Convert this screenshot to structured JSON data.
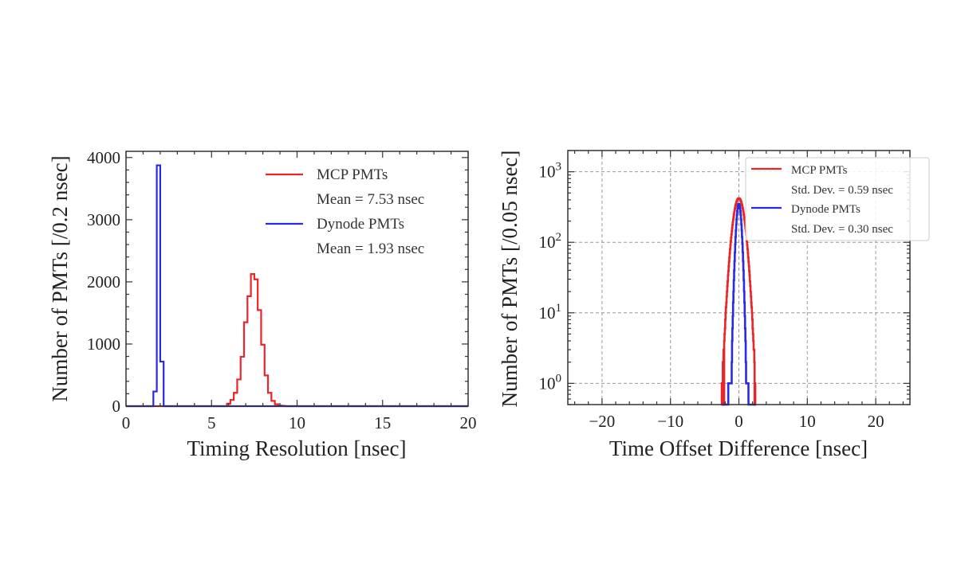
{
  "chart_data": [
    {
      "type": "histogram-step",
      "xlabel": "Timing Resolution [nsec]",
      "ylabel": "Number of PMTs [/0.2 nsec]",
      "xlim": [
        0,
        20
      ],
      "ylim": [
        0,
        4100
      ],
      "y_scale": "linear",
      "grid": false,
      "legend_placement": "top-right",
      "xticks": [
        0,
        5,
        10,
        15,
        20
      ],
      "xtick_labels": [
        "0",
        "5",
        "10",
        "15",
        "20"
      ],
      "yticks": [
        0,
        1000,
        2000,
        3000,
        4000
      ],
      "ytick_labels": [
        "0",
        "1000",
        "2000",
        "3000",
        "4000"
      ],
      "series": [
        {
          "name": "MCP PMTs",
          "note": "Mean = 7.53 nsec",
          "color": "#e8262a",
          "bin_start": 5.9,
          "bin_width": 0.2,
          "values": [
            40,
            100,
            215,
            430,
            795,
            1350,
            1770,
            2125,
            2040,
            1545,
            990,
            495,
            215,
            85,
            30,
            10,
            5
          ]
        },
        {
          "name": "Dynode PMTs",
          "note": "Mean = 1.93 nsec",
          "color": "#2a2ae0",
          "bin_start": 1.6,
          "bin_width": 0.2,
          "values": [
            236,
            3875,
            717
          ]
        }
      ]
    },
    {
      "type": "histogram-step",
      "xlabel": "Time Offset Difference [nsec]",
      "ylabel": "Number of PMTs [/0.05 nsec]",
      "xlim": [
        -25,
        25
      ],
      "ylim": [
        0.5,
        2000
      ],
      "y_scale": "log",
      "grid": true,
      "legend_placement": "top-right",
      "xticks": [
        -20,
        -10,
        0,
        10,
        20
      ],
      "xtick_labels": [
        "−20",
        "−10",
        "0",
        "10",
        "20"
      ],
      "yticks": [
        1,
        10,
        100,
        1000
      ],
      "ytick_labels": [
        "10^0",
        "10^1",
        "10^2",
        "10^3"
      ],
      "series": [
        {
          "name": "MCP PMTs",
          "note": "Std. Dev. = 0.59 nsec",
          "color": "#e8262a",
          "bin_start": -2.5,
          "bin_width": 0.05,
          "values": [
            1,
            0,
            1,
            2,
            2,
            3,
            0,
            4,
            5,
            6,
            8,
            10,
            12,
            14,
            17,
            20,
            24,
            28,
            34,
            39,
            46,
            53,
            61,
            70,
            80,
            91,
            103,
            116,
            129,
            144,
            159,
            176,
            192,
            210,
            228,
            246,
            264,
            282,
            300,
            317,
            334,
            349,
            364,
            377,
            389,
            399,
            407,
            413,
            418,
            420,
            420,
            418,
            413,
            407,
            399,
            389,
            377,
            364,
            349,
            334,
            317,
            300,
            282,
            264,
            246,
            228,
            210,
            192,
            176,
            159,
            144,
            129,
            116,
            103,
            91,
            80,
            70,
            61,
            53,
            46,
            39,
            34,
            28,
            24,
            20,
            17,
            14,
            12,
            10,
            8,
            6,
            5,
            4,
            3,
            3,
            2,
            0,
            1,
            0,
            0
          ]
        },
        {
          "name": "Dynode PMTs",
          "note": "Std. Dev. = 0.30 nsec",
          "color": "#2a2ae0",
          "bin_start": -2.5,
          "bin_width": 0.05,
          "values": [
            0,
            0,
            0,
            0,
            0,
            0,
            0,
            0,
            0,
            0,
            0,
            0,
            0,
            0,
            0,
            0,
            0,
            0,
            0,
            1,
            1,
            1,
            1,
            1,
            1,
            1,
            1,
            1,
            1,
            2,
            4,
            6,
            9,
            14,
            20,
            29,
            40,
            54,
            72,
            94,
            119,
            148,
            179,
            212,
            244,
            275,
            302,
            325,
            341,
            349,
            349,
            341,
            325,
            302,
            275,
            244,
            212,
            179,
            148,
            119,
            94,
            72,
            54,
            40,
            29,
            20,
            14,
            9,
            6,
            4,
            2,
            1,
            1,
            1,
            1,
            1,
            1,
            1,
            0,
            0,
            0,
            0,
            0,
            0,
            0,
            0,
            0,
            0,
            0,
            0,
            0,
            0,
            0,
            0,
            0,
            0,
            0,
            0,
            0,
            0
          ]
        }
      ]
    }
  ]
}
